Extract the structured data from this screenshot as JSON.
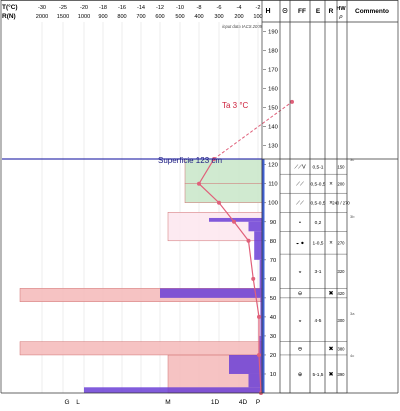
{
  "header": {
    "t_label": "T(°C)",
    "r_label": "R(N)",
    "t_ticks": [
      "-30",
      "-25",
      "-20",
      "-18",
      "-16",
      "-14",
      "-12",
      "-10",
      "-8",
      "-6",
      "-4",
      "-2"
    ],
    "r_ticks": [
      "2000",
      "1500",
      "1000",
      "900",
      "800",
      "700",
      "600",
      "500",
      "400",
      "300",
      "200",
      "100"
    ],
    "input_note": "input data IACS 2009"
  },
  "columns": {
    "h": "H",
    "theta": "Θ",
    "ff": "FF",
    "e": "E",
    "r": "R",
    "hw_top": "HW",
    "hw_unit": "ρ",
    "commento": "Commento"
  },
  "bottom_labels": {
    "g": "G",
    "l": "L",
    "m": "M",
    "one_d": "1D",
    "four_d": "4D",
    "p": "P"
  },
  "annotations": {
    "air_temp": "Ta  3 °C",
    "surface": "Superficie  123 cm"
  },
  "chart_data": {
    "type": "snow-profile",
    "height_unit": "cm",
    "h_axis": {
      "min": 0,
      "max": 190,
      "ticks": [
        10,
        20,
        30,
        40,
        50,
        60,
        70,
        80,
        90,
        100,
        110,
        120,
        130,
        140,
        150,
        160,
        170,
        180,
        190
      ]
    },
    "snow_height": 123,
    "air_temperature": 3,
    "temperature_axis_min": -30,
    "temperature_axis_max": 0,
    "temperature_profile": [
      {
        "h": 0,
        "t": -0.5
      },
      {
        "h": 20,
        "t": -1.5
      },
      {
        "h": 40,
        "t": -1.5
      },
      {
        "h": 60,
        "t": -2.5
      },
      {
        "h": 80,
        "t": -3
      },
      {
        "h": 90,
        "t": -4.5
      },
      {
        "h": 100,
        "t": -6
      },
      {
        "h": 110,
        "t": -8
      },
      {
        "h": 123,
        "t": -6.5
      }
    ],
    "air_temperature_point": {
      "h": 153,
      "t": 3
    },
    "ram_resistance": [
      {
        "from": 0,
        "to": 3,
        "r": 1000
      },
      {
        "from": 3,
        "to": 10,
        "r": 150
      },
      {
        "from": 10,
        "to": 20,
        "r": 250
      },
      {
        "from": 20,
        "to": 30,
        "r": 60
      },
      {
        "from": 30,
        "to": 50,
        "r": 40
      },
      {
        "from": 50,
        "to": 55,
        "r": 600
      },
      {
        "from": 55,
        "to": 70,
        "r": 60
      },
      {
        "from": 70,
        "to": 85,
        "r": 120
      },
      {
        "from": 85,
        "to": 90,
        "r": 150
      },
      {
        "from": 90,
        "to": 92,
        "r": 350
      },
      {
        "from": 92,
        "to": 123,
        "r": 10
      }
    ],
    "hardness_layers": [
      {
        "from": 0,
        "to": 20,
        "hand_hardness": "1D",
        "color": "#f4b8b8"
      },
      {
        "from": 20,
        "to": 27,
        "hand_hardness": "G",
        "color": "#f4b8b8"
      },
      {
        "from": 48,
        "to": 55,
        "hand_hardness": "G",
        "color": "#f4b8b8"
      },
      {
        "from": 80,
        "to": 95,
        "hand_hardness": "M",
        "color": "#fde6ee"
      },
      {
        "from": 100,
        "to": 110,
        "hand_hardness": "4D",
        "color": "#c8e6c8"
      },
      {
        "from": 110,
        "to": 123,
        "hand_hardness": "4D",
        "color": "#c8e6c8"
      }
    ],
    "strata": [
      {
        "ff": "⟋⟋V",
        "e": "0,5-1",
        "r": "",
        "hw": "150",
        "top": 123,
        "bottom": 115
      },
      {
        "ff": "⟋⟋",
        "e": "0,5-0,5",
        "r": "×",
        "hw": "200",
        "top": 115,
        "bottom": 105
      },
      {
        "ff": "⟋⟋",
        "e": "0,5-0,5",
        "r": "×",
        "hw": "240 / 270",
        "top": 105,
        "bottom": 95
      },
      {
        "ff": "•",
        "e": "0,2",
        "r": "",
        "hw": "",
        "top": 95,
        "bottom": 85
      },
      {
        "ff": "◒ ●",
        "e": "1-0,5",
        "r": "×",
        "hw": "270",
        "top": 85,
        "bottom": 73
      },
      {
        "ff": "◒",
        "e": "3-1",
        "r": "",
        "hw": "320",
        "top": 73,
        "bottom": 55
      },
      {
        "ff": "⊖",
        "e": "",
        "r": "✖",
        "hw": "420",
        "top": 55,
        "bottom": 50
      },
      {
        "ff": "◒",
        "e": "4-5",
        "r": "",
        "hw": "300",
        "top": 50,
        "bottom": 27
      },
      {
        "ff": "⊖",
        "e": "",
        "r": "✖",
        "hw": "380",
        "top": 27,
        "bottom": 20
      },
      {
        "ff": "⊕",
        "e": "5-1,5",
        "r": "✖",
        "hw": "390",
        "top": 20,
        "bottom": 0
      }
    ],
    "comment_markers": [
      {
        "h": 123,
        "text": "3c"
      },
      {
        "h": 93,
        "text": "3b"
      },
      {
        "h": 42,
        "text": "3a"
      },
      {
        "h": 20,
        "text": "4c"
      }
    ]
  }
}
